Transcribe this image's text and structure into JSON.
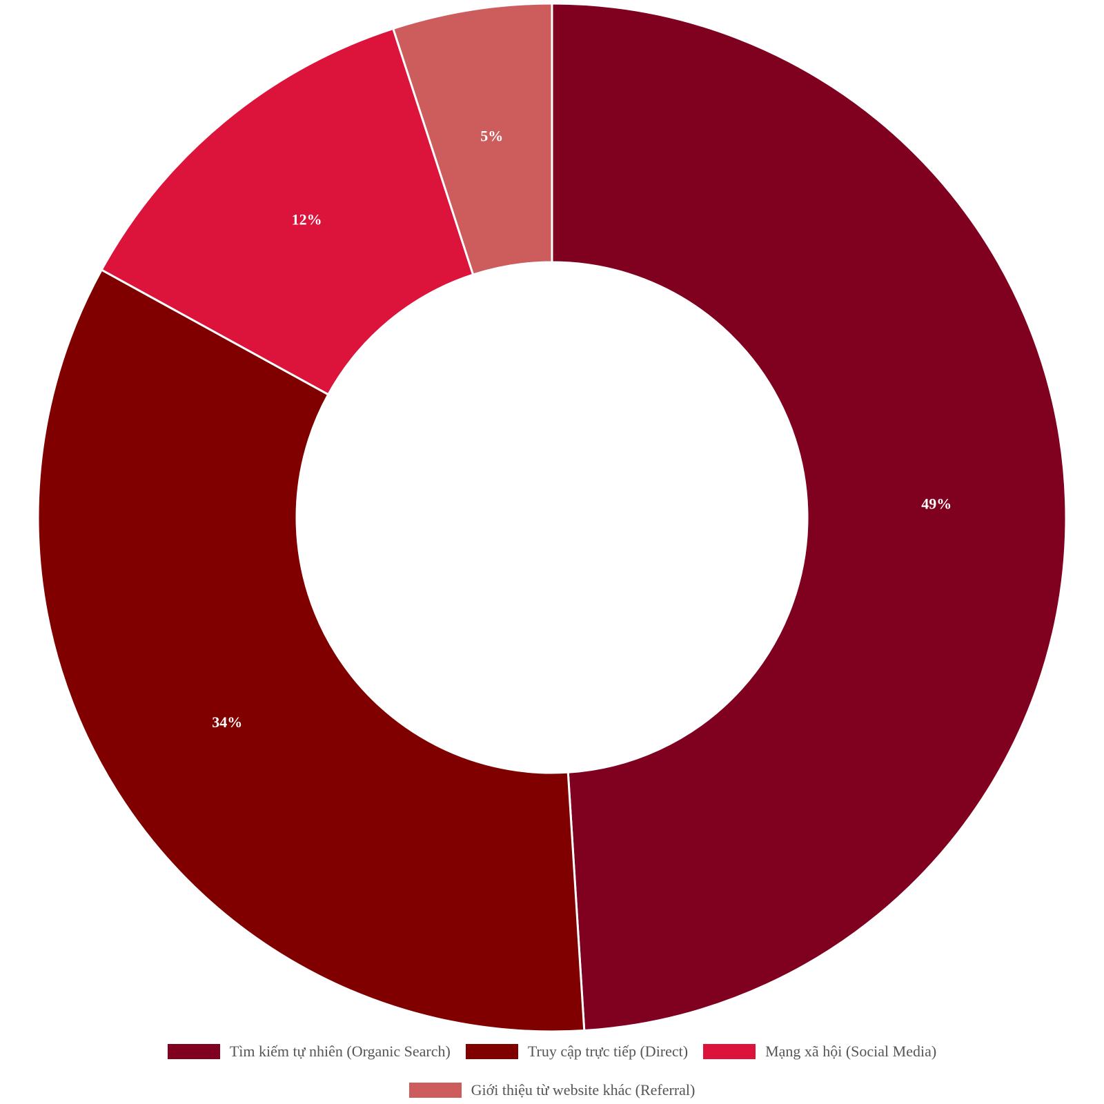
{
  "chart_data": {
    "type": "pie",
    "donut": true,
    "legend_position": "bottom",
    "categories": [
      "Tìm kiếm tự nhiên (Organic Search)",
      "Truy cập trực tiếp (Direct)",
      "Mạng xã hội (Social Media)",
      "Giới thiệu từ website khác (Referral)"
    ],
    "values": [
      49,
      34,
      12,
      5
    ],
    "value_labels": [
      "49%",
      "34%",
      "12%",
      "5%"
    ],
    "colors": [
      "#800020",
      "#800000",
      "#dc143c",
      "#cd5c5c"
    ],
    "unit": "%"
  }
}
